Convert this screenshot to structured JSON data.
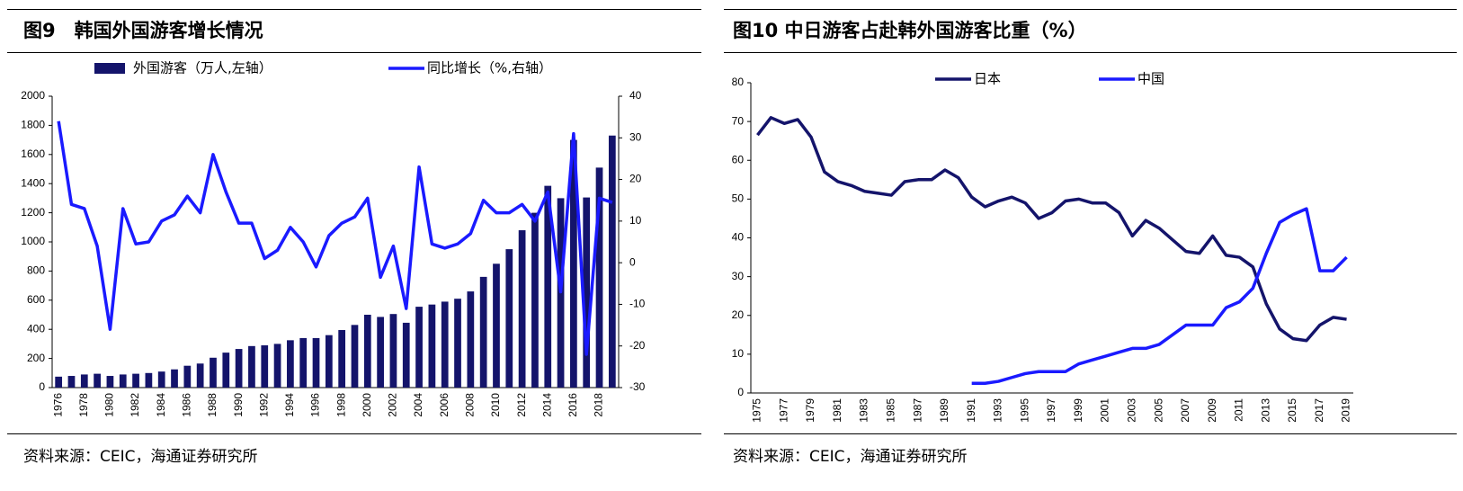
{
  "chart_data": [
    {
      "type": "bar",
      "title": "图9　韩国外国游客增长情况",
      "source": "资料来源：CEIC，海通证券研究所",
      "categories": [
        "1976",
        null,
        "1978",
        null,
        "1980",
        null,
        "1982",
        null,
        "1984",
        null,
        "1986",
        null,
        "1988",
        null,
        "1990",
        null,
        "1992",
        null,
        "1994",
        null,
        "1996",
        null,
        "1998",
        null,
        "2000",
        null,
        "2002",
        null,
        "2004",
        null,
        "2006",
        null,
        "2008",
        null,
        "2010",
        null,
        "2012",
        null,
        "2014",
        null,
        "2016",
        null,
        "2018",
        null
      ],
      "series": [
        {
          "name": "外国游客（万人,左轴）",
          "type": "bar",
          "color": "#14146b",
          "values": [
            75,
            80,
            90,
            95,
            80,
            90,
            95,
            100,
            110,
            125,
            150,
            165,
            205,
            240,
            265,
            285,
            290,
            300,
            325,
            340,
            340,
            360,
            395,
            430,
            500,
            485,
            505,
            445,
            555,
            570,
            590,
            610,
            660,
            760,
            850,
            950,
            1080,
            1200,
            1385,
            1300,
            1700,
            1305,
            1510,
            1730
          ]
        },
        {
          "name": "同比增长（%,右轴）",
          "type": "line",
          "axis": "y2",
          "color": "#1a1aff",
          "values": [
            34,
            14,
            13,
            4,
            -16,
            13,
            4.5,
            5,
            10,
            11.5,
            16,
            12,
            26,
            17,
            9.5,
            9.5,
            1,
            3,
            8.5,
            5,
            -1,
            6.5,
            9.5,
            11,
            15.5,
            -3.5,
            4,
            -11,
            23,
            4.5,
            3.5,
            4.5,
            7,
            15,
            12,
            12,
            14,
            10,
            17,
            -7,
            31,
            -22,
            15.5,
            14.5
          ]
        }
      ],
      "ylim": [
        0,
        2000
      ],
      "yticks": [
        0,
        200,
        400,
        600,
        800,
        1000,
        1200,
        1400,
        1600,
        1800,
        2000
      ],
      "y2lim": [
        -30,
        40
      ],
      "y2ticks": [
        -30,
        -20,
        -10,
        0,
        10,
        20,
        30,
        40
      ]
    },
    {
      "type": "line",
      "title": "图10 中日游客占赴韩外国游客比重（%）",
      "source": "资料来源：CEIC，海通证券研究所",
      "categories": [
        "1975",
        null,
        "1977",
        null,
        "1979",
        null,
        "1981",
        null,
        "1983",
        null,
        "1985",
        null,
        "1987",
        null,
        "1989",
        null,
        "1991",
        null,
        "1993",
        null,
        "1995",
        null,
        "1997",
        null,
        "1999",
        null,
        "2001",
        null,
        "2003",
        null,
        "2005",
        null,
        "2007",
        null,
        "2009",
        null,
        "2011",
        null,
        "2013",
        null,
        "2015",
        null,
        "2017",
        null,
        "2019"
      ],
      "series": [
        {
          "name": "日本",
          "color": "#14146b",
          "values": [
            66.5,
            71,
            69.5,
            70.5,
            66,
            57,
            54.5,
            53.5,
            52,
            51.5,
            51,
            54.5,
            55,
            55,
            57.5,
            55.5,
            50.5,
            48,
            49.5,
            50.5,
            49,
            45,
            46.5,
            49.5,
            50,
            49,
            49,
            46.5,
            40.5,
            44.5,
            42.5,
            39.5,
            36.5,
            36,
            40.5,
            35.5,
            35,
            32.5,
            23,
            16.5,
            14,
            13.5,
            17.5,
            19.5,
            19
          ]
        },
        {
          "name": "中国",
          "color": "#1a1aff",
          "values": [
            null,
            null,
            null,
            null,
            null,
            null,
            null,
            null,
            null,
            null,
            null,
            null,
            null,
            null,
            null,
            null,
            2.5,
            2.5,
            3,
            4,
            5,
            5.5,
            5.5,
            5.5,
            7.5,
            8.5,
            9.5,
            10.5,
            11.5,
            11.5,
            12.5,
            15,
            17.5,
            17.5,
            17.5,
            22,
            23.5,
            27,
            36,
            44,
            46,
            47.5,
            31.5,
            31.5,
            35
          ]
        }
      ],
      "ylim": [
        0,
        80
      ],
      "yticks": [
        0,
        10,
        20,
        30,
        40,
        50,
        60,
        70,
        80
      ]
    }
  ]
}
